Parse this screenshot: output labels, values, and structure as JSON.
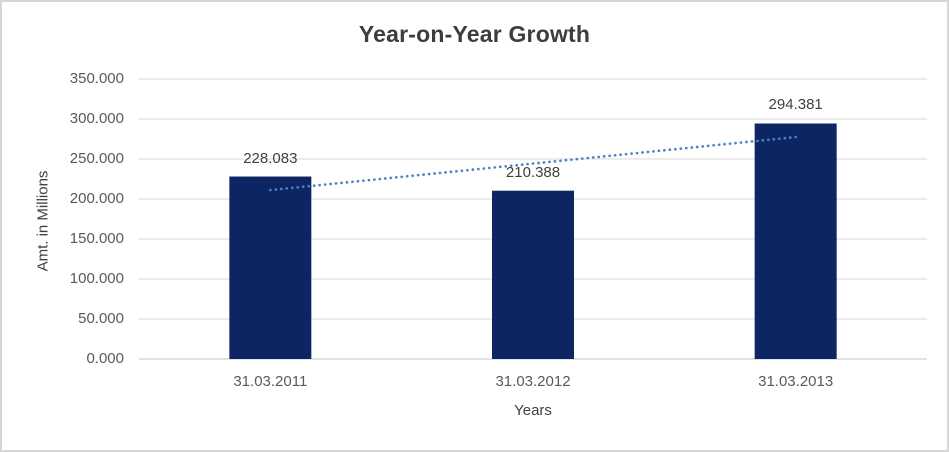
{
  "chart_data": {
    "type": "bar",
    "title": "Year-on-Year Growth",
    "categories": [
      "31.03.2011",
      "31.03.2012",
      "31.03.2013"
    ],
    "values": [
      228.083,
      210.388,
      294.381
    ],
    "data_labels": [
      "228.083",
      "210.388",
      "294.381"
    ],
    "xlabel": "Years",
    "ylabel": "Amt. in Millions",
    "ylim": [
      0,
      350
    ],
    "ytick_step": 50,
    "yticks": [
      {
        "value": 0,
        "label": "0.000"
      },
      {
        "value": 50,
        "label": "50.000"
      },
      {
        "value": 100,
        "label": "100.000"
      },
      {
        "value": 150,
        "label": "150.000"
      },
      {
        "value": 200,
        "label": "200.000"
      },
      {
        "value": 250,
        "label": "250.000"
      },
      {
        "value": 300,
        "label": "300.000"
      },
      {
        "value": 350,
        "label": "350.000"
      }
    ],
    "grid": true,
    "legend": "none",
    "trendline": "linear-dotted",
    "colors": {
      "bar": "#0d2562",
      "trendline": "#4a82c6",
      "gridline": "#d9d9d9",
      "axis_line": "#c6c6c6",
      "title_text": "#3d3d3d",
      "label_text": "#404040",
      "tick_text": "#595959",
      "canvas_border": "#d6d6d6",
      "background": "#ffffff"
    }
  }
}
